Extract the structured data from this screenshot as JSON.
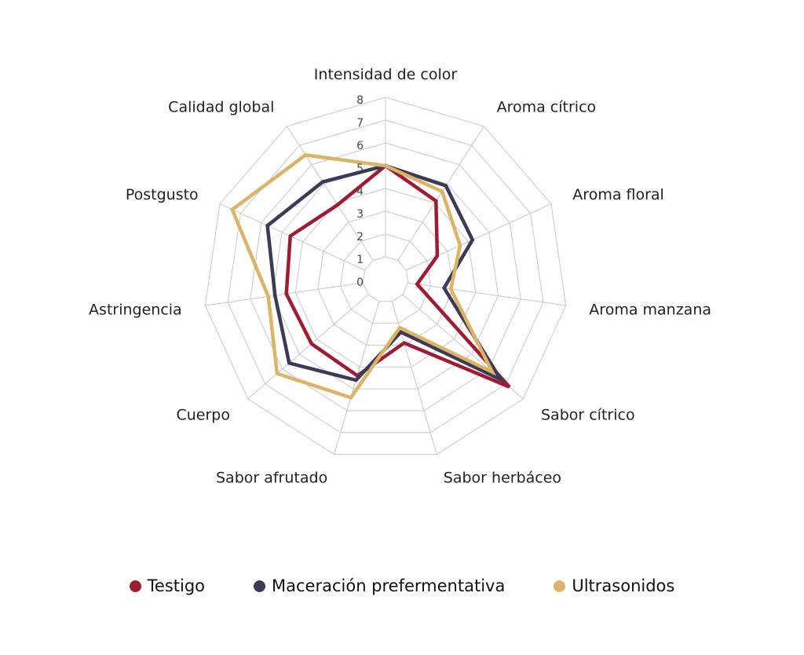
{
  "chart_data": {
    "type": "radar",
    "title": "",
    "axes": [
      "Intensidad de color",
      "Aroma cítrico",
      "Aroma floral",
      "Aroma manzana",
      "Sabor cítrico",
      "Sabor herbáceo",
      "Sabor afrutado",
      "Cuerpo",
      "Astringencia",
      "Postgusto",
      "Calidad global"
    ],
    "ticks": [
      "0",
      "1",
      "2",
      "3",
      "4",
      "5",
      "6",
      "7",
      "8"
    ],
    "range": [
      0,
      8
    ],
    "grid": true,
    "legend_position": "bottom",
    "series": [
      {
        "name": "Testigo",
        "color": "#9e1b32",
        "values": [
          5.0,
          4.1,
          2.5,
          1.4,
          7.2,
          2.9,
          4.4,
          4.3,
          4.4,
          4.6,
          3.9
        ]
      },
      {
        "name": "Maceración prefermentativa",
        "color": "#3b3b58",
        "values": [
          5.0,
          4.9,
          4.2,
          2.6,
          6.7,
          2.4,
          4.6,
          5.6,
          4.9,
          5.7,
          5.1
        ]
      },
      {
        "name": "Ultrasonidos",
        "color": "#dcb468",
        "values": [
          5.0,
          4.6,
          3.6,
          2.9,
          6.2,
          2.2,
          5.4,
          6.3,
          5.2,
          7.4,
          6.5
        ]
      }
    ]
  }
}
